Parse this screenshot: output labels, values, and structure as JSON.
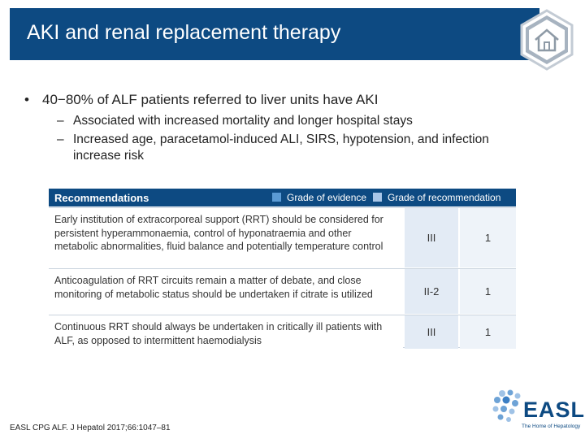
{
  "slide": {
    "title": "AKI and renal replacement therapy"
  },
  "content": {
    "bullet": "40−80% of ALF patients referred to liver units have AKI",
    "bullet_marker": "•",
    "sub_marker": "–",
    "sub_bullets": [
      "Associated with increased mortality and longer hospital stays",
      "Increased age, paracetamol-induced ALI, SIRS, hypotension, and infection increase risk"
    ]
  },
  "table": {
    "title": "Recommendations",
    "legend_evidence": "Grade of evidence",
    "legend_recommendation": "Grade of recommendation",
    "rows": [
      {
        "text": "Early institution of extracorporeal support (RRT) should be considered for persistent hyperammonaemia, control of hyponatraemia and other metabolic abnormalities, fluid balance and potentially temperature control",
        "evidence": "III",
        "recommendation": "1"
      },
      {
        "text": "Anticoagulation of RRT circuits remain a matter of debate, and close monitoring of metabolic status should be undertaken if citrate is utilized",
        "evidence": "II-2",
        "recommendation": "1"
      },
      {
        "text": "Continuous RRT should always be undertaken in critically ill patients with ALF, as opposed to intermittent haemodialysis",
        "evidence": "III",
        "recommendation": "1"
      }
    ]
  },
  "footer": {
    "reference": "EASL CPG ALF. J Hepatol 2017;66:1047–81",
    "logo_text": "EASL",
    "logo_tagline": "The Home of Hepatology"
  },
  "colors": {
    "brand_blue": "#0d4a82",
    "evidence_swatch": "#5b9bd5",
    "recommendation_swatch": "#a9c6e8"
  },
  "icons": {
    "home": "home-icon"
  }
}
